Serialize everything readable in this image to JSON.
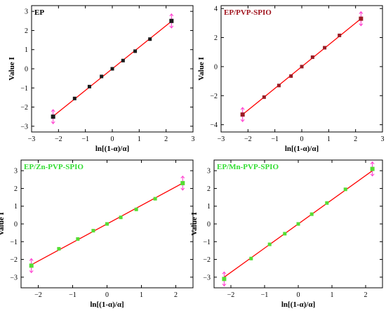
{
  "chart_data": [
    {
      "type": "scatter",
      "title": "EP",
      "title_color": "#000000",
      "xlabel": "ln[(1-α)/α]",
      "ylabel": "Value I",
      "xlim": [
        -3,
        3
      ],
      "ylim": [
        -3.3,
        3.3
      ],
      "xticks": [
        -3,
        -2,
        -1,
        0,
        1,
        2,
        3
      ],
      "yticks": [
        -3,
        -2,
        -1,
        0,
        1,
        2,
        3
      ],
      "marker_color": "#1a1a1a",
      "fit_color": "#ff0000",
      "end_arrow_color": "#ff33cc",
      "fit_line": {
        "x": [
          -2.2,
          2.2
        ],
        "y": [
          -2.48,
          2.48
        ]
      },
      "series": [
        {
          "x": [
            -2.2,
            -1.4,
            -0.85,
            -0.4,
            0,
            0.4,
            0.85,
            1.4,
            2.2
          ],
          "y": [
            -2.5,
            -1.55,
            -0.93,
            -0.4,
            0,
            0.43,
            0.92,
            1.55,
            2.5
          ]
        }
      ]
    },
    {
      "type": "scatter",
      "title": "EP/PVP-SPIO",
      "title_color": "#a0141e",
      "xlabel": "ln[(1-α)/α]",
      "ylabel": "Value I",
      "xlim": [
        -3,
        3
      ],
      "ylim": [
        -4.5,
        4.2
      ],
      "xticks": [
        -3,
        -2,
        -1,
        0,
        1,
        2,
        3
      ],
      "yticks": [
        -4,
        -2,
        0,
        2,
        4
      ],
      "marker_color": "#9b1c25",
      "fit_color": "#ff0000",
      "end_arrow_color": "#ff33cc",
      "fit_line": {
        "x": [
          -2.2,
          2.2
        ],
        "y": [
          -3.3,
          3.3
        ]
      },
      "series": [
        {
          "x": [
            -2.2,
            -1.4,
            -0.85,
            -0.4,
            0,
            0.4,
            0.85,
            1.4,
            2.2
          ],
          "y": [
            -3.3,
            -2.1,
            -1.3,
            -0.65,
            0,
            0.65,
            1.3,
            2.15,
            3.3
          ]
        }
      ]
    },
    {
      "type": "scatter",
      "title": "EP/Zn-PVP-SPIO",
      "title_color": "#33dd33",
      "xlabel": "ln[(1-α)/α]",
      "ylabel": "Value I",
      "xlim": [
        -2.5,
        2.5
      ],
      "ylim": [
        -3.6,
        3.6
      ],
      "xticks": [
        -2,
        -1,
        0,
        1,
        2
      ],
      "yticks": [
        -3,
        -2,
        -1,
        0,
        1,
        2,
        3
      ],
      "marker_color": "#55dd33",
      "fit_color": "#ff0000",
      "end_arrow_color": "#ff33cc",
      "fit_line": {
        "x": [
          -2.2,
          2.2
        ],
        "y": [
          -2.3,
          2.3
        ]
      },
      "series": [
        {
          "x": [
            -2.2,
            -1.4,
            -0.85,
            -0.4,
            0,
            0.4,
            0.85,
            1.4,
            2.2
          ],
          "y": [
            -2.35,
            -1.4,
            -0.85,
            -0.38,
            0,
            0.37,
            0.82,
            1.42,
            2.3
          ]
        }
      ]
    },
    {
      "type": "scatter",
      "title": "EP/Mn-PVP-SPIO",
      "title_color": "#33dd33",
      "xlabel": "ln[(1-α)/α]",
      "ylabel": "Value I",
      "xlim": [
        -2.5,
        2.5
      ],
      "ylim": [
        -3.6,
        3.6
      ],
      "xticks": [
        -2,
        -1,
        0,
        1,
        2
      ],
      "yticks": [
        -3,
        -2,
        -1,
        0,
        1,
        2,
        3
      ],
      "marker_color": "#55dd33",
      "fit_color": "#ff0000",
      "end_arrow_color": "#ff33cc",
      "fit_line": {
        "x": [
          -2.2,
          2.2
        ],
        "y": [
          -3.0,
          3.0
        ]
      },
      "series": [
        {
          "x": [
            -2.2,
            -1.4,
            -0.85,
            -0.4,
            0,
            0.4,
            0.85,
            1.4,
            2.2
          ],
          "y": [
            -3.1,
            -1.95,
            -1.15,
            -0.55,
            0,
            0.55,
            1.18,
            1.95,
            3.1
          ]
        }
      ]
    }
  ]
}
